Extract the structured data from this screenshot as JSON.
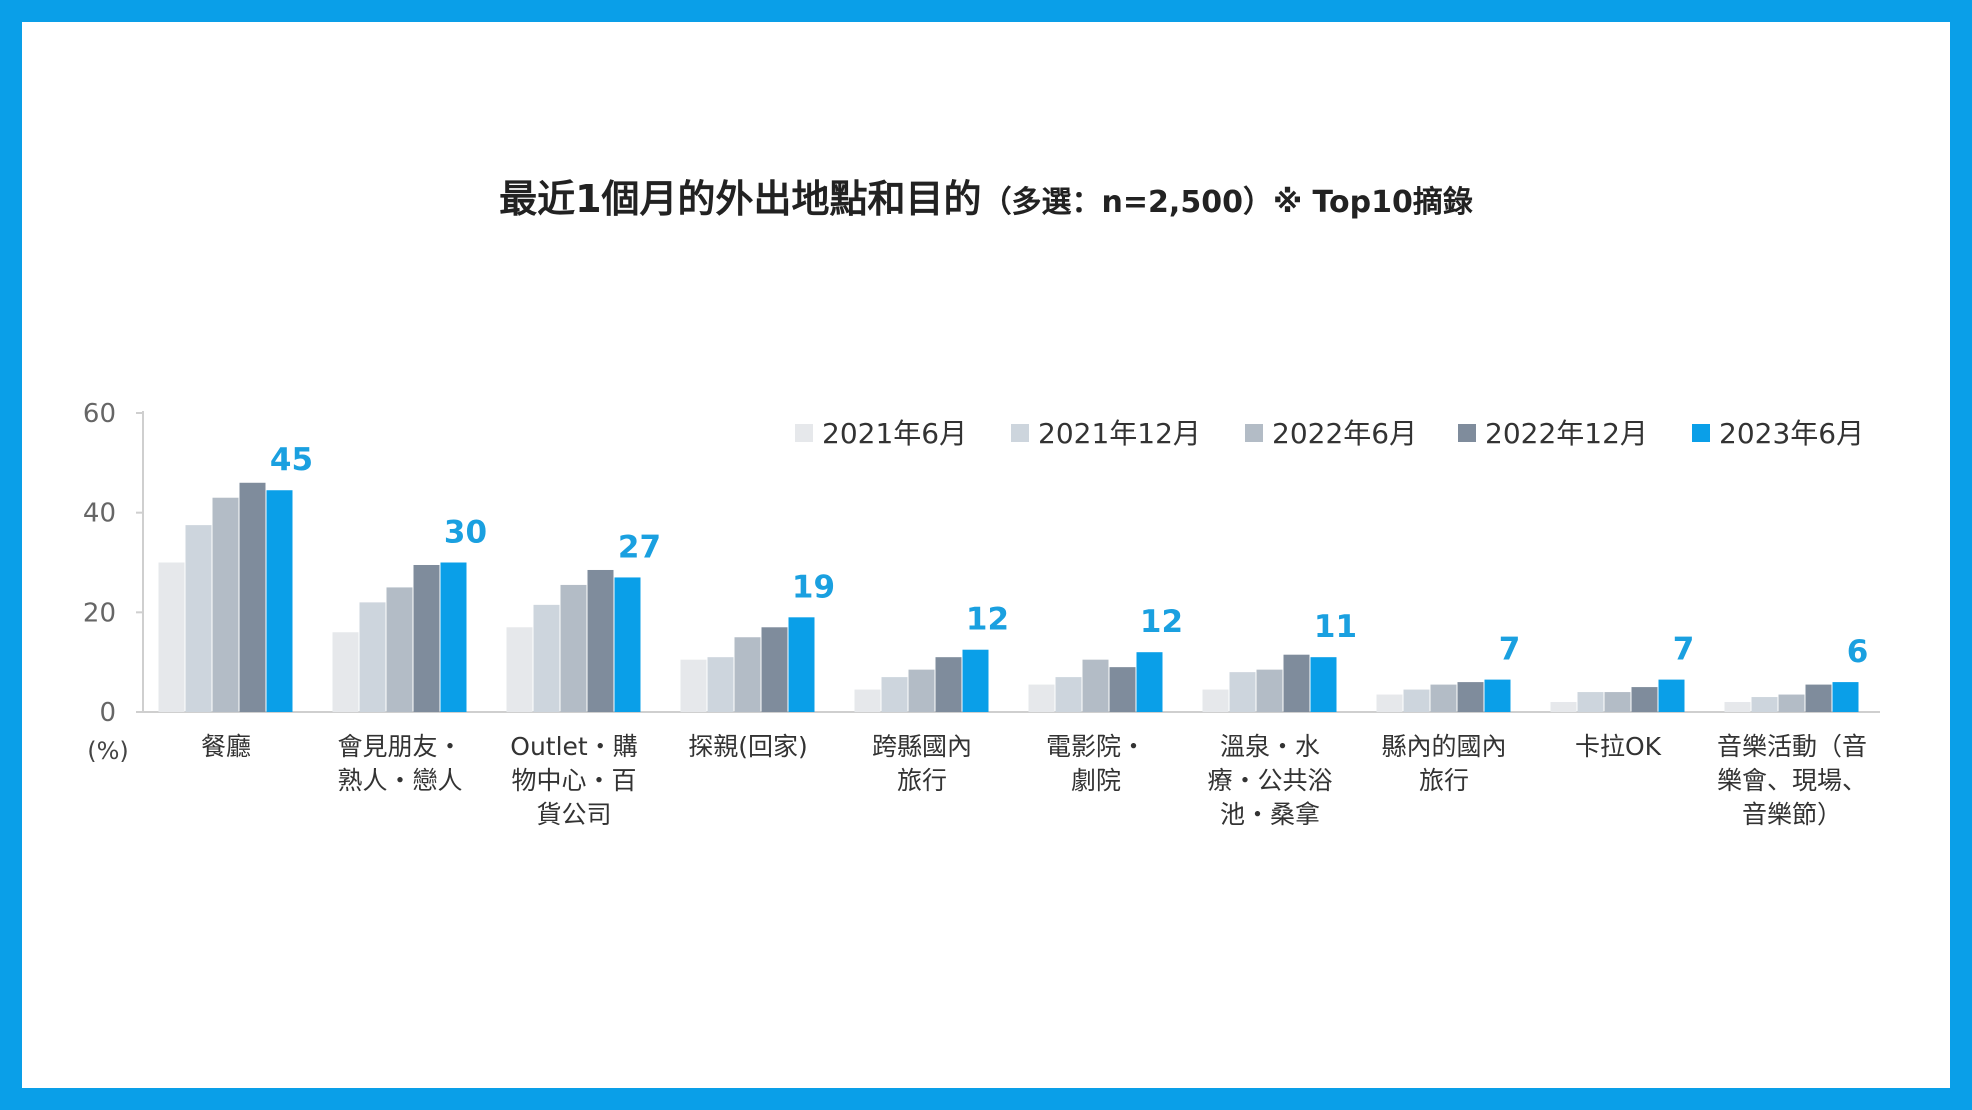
{
  "title": {
    "main": "最近1個月的外出地點和目的",
    "sub": "（多選：n=2,500）※ Top10摘錄"
  },
  "colors": {
    "frame": "#0a9fe8",
    "series": [
      "#e6e8eb",
      "#cdd5dd",
      "#b3bcc6",
      "#7f8c9c",
      "#0a9fe8"
    ],
    "data_label": "#1aa0e0"
  },
  "chart_data": {
    "type": "bar",
    "title": "最近1個月的外出地點和目的",
    "unit_label": "(%)",
    "ylim": [
      0,
      60
    ],
    "yticks": [
      0,
      20,
      40,
      60
    ],
    "grid": false,
    "legend_position": "top-right",
    "categories": [
      [
        "餐廳"
      ],
      [
        "會見朋友・",
        "熟人・戀人"
      ],
      [
        "Outlet・購",
        "物中心・百",
        "貨公司"
      ],
      [
        "探親(回家)"
      ],
      [
        "跨縣國內",
        "旅行"
      ],
      [
        "電影院・",
        "劇院"
      ],
      [
        "溫泉・水",
        "療・公共浴",
        "池・桑拿"
      ],
      [
        "縣內的國內",
        "旅行"
      ],
      [
        "卡拉OK"
      ],
      [
        "音樂活動（音",
        "樂會、現場、",
        "音樂節）"
      ]
    ],
    "series": [
      {
        "name": "2021年6月",
        "values": [
          30,
          16,
          17,
          10.5,
          4.5,
          5.5,
          4.5,
          3.5,
          2,
          2
        ]
      },
      {
        "name": "2021年12月",
        "values": [
          37.5,
          22,
          21.5,
          11,
          7,
          7,
          8,
          4.5,
          4,
          3
        ]
      },
      {
        "name": "2022年6月",
        "values": [
          43,
          25,
          25.5,
          15,
          8.5,
          10.5,
          8.5,
          5.5,
          4,
          3.5
        ]
      },
      {
        "name": "2022年12月",
        "values": [
          46,
          29.5,
          28.5,
          17,
          11,
          9,
          11.5,
          6,
          5,
          5.5
        ]
      },
      {
        "name": "2023年6月",
        "values": [
          44.5,
          30,
          27,
          19,
          12.5,
          12,
          11,
          6.5,
          6.5,
          6
        ]
      }
    ],
    "data_labels": [
      "45",
      "30",
      "27",
      "19",
      "12",
      "12",
      "11",
      "7",
      "7",
      "6"
    ]
  }
}
